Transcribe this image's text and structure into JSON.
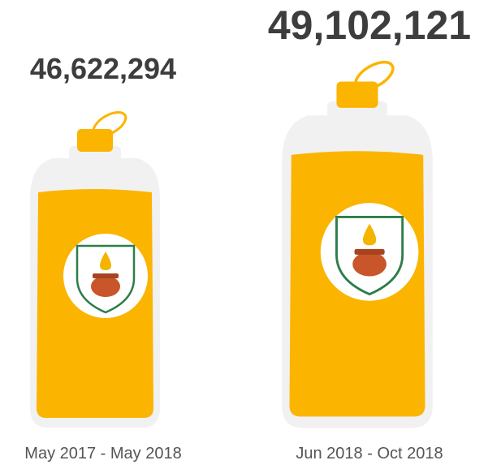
{
  "items": [
    {
      "value": "46,622,294",
      "period": "May 2017 - May 2018"
    },
    {
      "value": "49,102,121",
      "period": "Jun 2018 - Oct 2018"
    }
  ]
}
